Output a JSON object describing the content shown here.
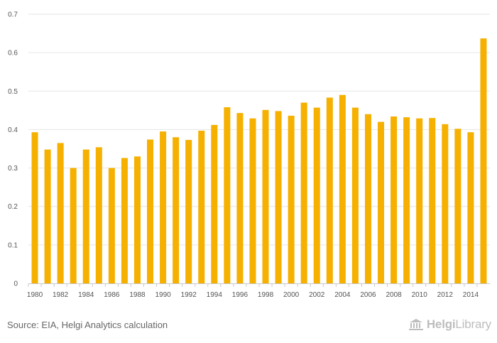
{
  "chart_data": {
    "type": "bar",
    "title": "",
    "xlabel": "",
    "ylabel": "",
    "categories": [
      "1980",
      "1981",
      "1982",
      "1983",
      "1984",
      "1985",
      "1986",
      "1987",
      "1988",
      "1989",
      "1990",
      "1991",
      "1992",
      "1993",
      "1994",
      "1995",
      "1996",
      "1997",
      "1998",
      "1999",
      "2000",
      "2001",
      "2002",
      "2003",
      "2004",
      "2005",
      "2006",
      "2007",
      "2008",
      "2009",
      "2010",
      "2011",
      "2012",
      "2013",
      "2014",
      "2015"
    ],
    "x_tick_labels": [
      "1980",
      "1982",
      "1984",
      "1986",
      "1988",
      "1990",
      "1992",
      "1994",
      "1996",
      "1998",
      "2000",
      "2002",
      "2004",
      "2006",
      "2008",
      "2010",
      "2012",
      "2014"
    ],
    "values": [
      0.393,
      0.348,
      0.365,
      0.3,
      0.348,
      0.354,
      0.3,
      0.326,
      0.33,
      0.374,
      0.395,
      0.38,
      0.373,
      0.397,
      0.412,
      0.458,
      0.443,
      0.429,
      0.451,
      0.448,
      0.436,
      0.47,
      0.457,
      0.483,
      0.49,
      0.457,
      0.44,
      0.42,
      0.434,
      0.432,
      0.429,
      0.43,
      0.414,
      0.402,
      0.393,
      0.637
    ],
    "ylim": [
      0,
      0.7
    ],
    "y_ticks": [
      "0",
      "0.1",
      "0.2",
      "0.3",
      "0.4",
      "0.5",
      "0.6",
      "0.7"
    ],
    "grid": true,
    "bar_color": "#f5b000"
  },
  "footer": {
    "source": "Source: EIA, Helgi Analytics calculation",
    "brand_prefix": "Helgi",
    "brand_suffix": "Library"
  },
  "colors": {
    "grid": "#e6e6e6",
    "brand": "#bdbdbd"
  }
}
